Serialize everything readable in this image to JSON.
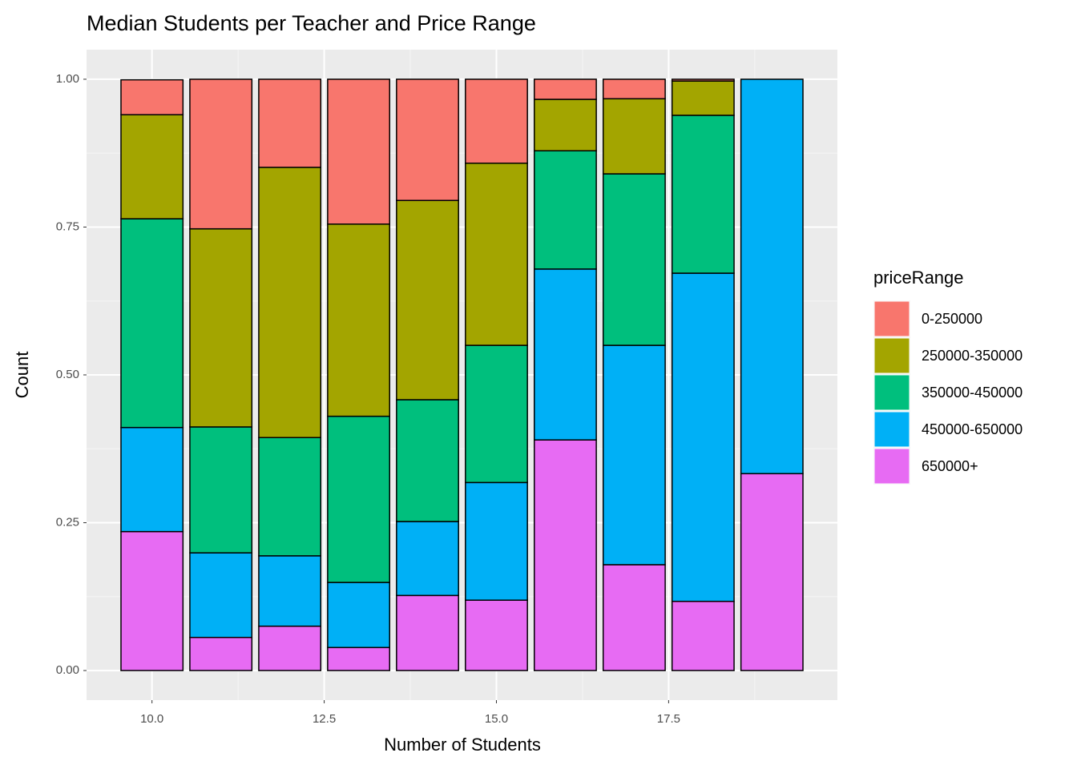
{
  "chart_data": {
    "type": "stacked_bar",
    "title": "Median Students per Teacher and Price Range",
    "x_label": "Number of Students",
    "y_label": "Count",
    "legend_title": "priceRange",
    "x": [
      10,
      11,
      12,
      13,
      14,
      15,
      16,
      17,
      18,
      19
    ],
    "series": [
      {
        "name": "650000+",
        "color": "#e76bf3",
        "values": [
          0.235,
          0.056,
          0.075,
          0.039,
          0.127,
          0.119,
          0.39,
          0.179,
          0.117,
          0.333
        ]
      },
      {
        "name": "450000-650000",
        "color": "#00b0f6",
        "values": [
          0.176,
          0.143,
          0.119,
          0.11,
          0.125,
          0.199,
          0.289,
          0.371,
          0.555,
          0.667
        ]
      },
      {
        "name": "350000-450000",
        "color": "#00bf7d",
        "values": [
          0.353,
          0.213,
          0.2,
          0.281,
          0.206,
          0.232,
          0.2,
          0.29,
          0.267,
          0
        ]
      },
      {
        "name": "250000-350000",
        "color": "#a3a500",
        "values": [
          0.176,
          0.335,
          0.457,
          0.325,
          0.337,
          0.308,
          0.087,
          0.127,
          0.058,
          0
        ]
      },
      {
        "name": "0-250000",
        "color": "#f8766d",
        "values": [
          0.059,
          0.253,
          0.149,
          0.245,
          0.205,
          0.142,
          0.034,
          0.033,
          0.003,
          0
        ]
      }
    ],
    "legend_order": [
      4,
      3,
      2,
      1,
      0
    ],
    "xlim": [
      9.05,
      19.95
    ],
    "ylim": [
      -0.05,
      1.05
    ],
    "xticks": [
      {
        "value": 10,
        "label": "10.0"
      },
      {
        "value": 12.5,
        "label": "12.5"
      },
      {
        "value": 15,
        "label": "15.0"
      },
      {
        "value": 17.5,
        "label": "17.5"
      }
    ],
    "yticks": [
      {
        "value": 0,
        "label": "0.00"
      },
      {
        "value": 0.25,
        "label": "0.25"
      },
      {
        "value": 0.5,
        "label": "0.50"
      },
      {
        "value": 0.75,
        "label": "0.75"
      },
      {
        "value": 1,
        "label": "1.00"
      }
    ],
    "grid": true,
    "legend_position": "right"
  }
}
